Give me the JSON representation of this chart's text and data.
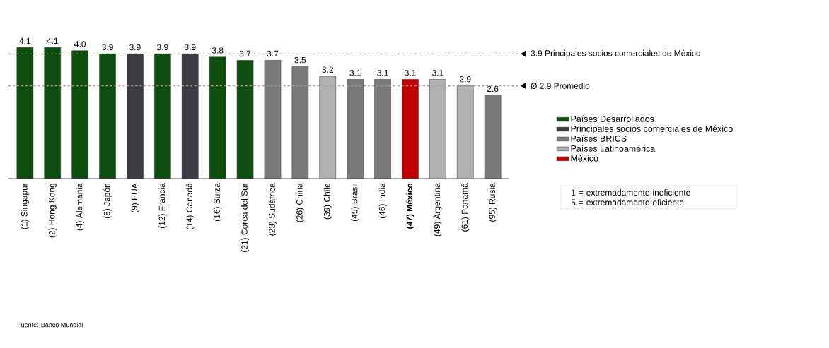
{
  "chart_data": {
    "type": "bar",
    "categories": [
      "(1) Singapur",
      "(2) Hong Kong",
      "(4) Alemania",
      "(8) Japón",
      "(9) EUA",
      "(12) Francia",
      "(14) Canadá",
      "(16) Suiza",
      "(21) Corea del Sur",
      "(23) Sudáfrica",
      "(26) China",
      "(39) Chile",
      "(45) Brasil",
      "(46) India",
      "**(47) México**",
      "(49) Argentina",
      "(61) Panamá",
      "(95) Rusia"
    ],
    "series": [
      {
        "name": "Países Desarrollados",
        "color": "#0d4d0d",
        "values": [
          4.1,
          4.1,
          4.0,
          3.9,
          null,
          3.9,
          null,
          3.8,
          3.7,
          null,
          null,
          null,
          null,
          null,
          null,
          null,
          null,
          null
        ],
        "value_labels": [
          "4.1",
          "4.1",
          "4.0",
          "3.9",
          null,
          "3.9",
          null,
          "3.8",
          "3.7",
          null,
          null,
          null,
          null,
          null,
          null,
          null,
          null,
          null
        ]
      },
      {
        "name": "Principales socios comerciales de México",
        "color": "#3c3c44",
        "values": [
          null,
          null,
          null,
          null,
          3.9,
          null,
          3.9,
          null,
          null,
          null,
          null,
          null,
          null,
          null,
          null,
          null,
          null,
          null
        ],
        "value_labels": [
          null,
          null,
          null,
          null,
          "3.9",
          null,
          "3.9",
          null,
          null,
          null,
          null,
          null,
          null,
          null,
          null,
          null,
          null,
          null
        ]
      },
      {
        "name": "Países BRICS",
        "color": "#7a7a7a",
        "values": [
          null,
          null,
          null,
          null,
          null,
          null,
          null,
          null,
          null,
          3.7,
          3.5,
          null,
          3.1,
          3.1,
          null,
          null,
          null,
          2.6
        ],
        "value_labels": [
          null,
          null,
          null,
          null,
          null,
          null,
          null,
          null,
          null,
          "3.7",
          "3.5",
          null,
          "3.1",
          "3.1",
          null,
          null,
          null,
          "2.6"
        ]
      },
      {
        "name": "Países Latinoamérica",
        "color": "#b0b0b0",
        "values": [
          null,
          null,
          null,
          null,
          null,
          null,
          null,
          null,
          null,
          null,
          null,
          3.2,
          null,
          null,
          null,
          3.1,
          2.9,
          null
        ],
        "value_labels": [
          null,
          null,
          null,
          null,
          null,
          null,
          null,
          null,
          null,
          null,
          null,
          "3.2",
          null,
          null,
          null,
          "3.1",
          "2.9",
          null
        ]
      },
      {
        "name": "México",
        "color": "#c00000",
        "values": [
          null,
          null,
          null,
          null,
          null,
          null,
          null,
          null,
          null,
          null,
          null,
          null,
          null,
          null,
          3.1,
          null,
          null,
          null
        ],
        "value_labels": [
          null,
          null,
          null,
          null,
          null,
          null,
          null,
          null,
          null,
          null,
          null,
          null,
          null,
          null,
          "3.1",
          null,
          null,
          null
        ]
      }
    ],
    "legend": "right",
    "ref_lines": [
      {
        "axis": "y",
        "value": 3.9,
        "label": "3.9   Principales socios comerciales de México",
        "color": "#8dc26f",
        "line_style": "dashed"
      },
      {
        "axis": "y",
        "value": 2.9,
        "label": "Ø 2.9   Promedio",
        "color": "#d08a8a",
        "line_style": "dashed"
      }
    ],
    "annotations": [
      "1 = extremadamente ineficiente",
      "5 = extremadamente eficiente",
      "Fuente: Banco Mundial"
    ]
  }
}
